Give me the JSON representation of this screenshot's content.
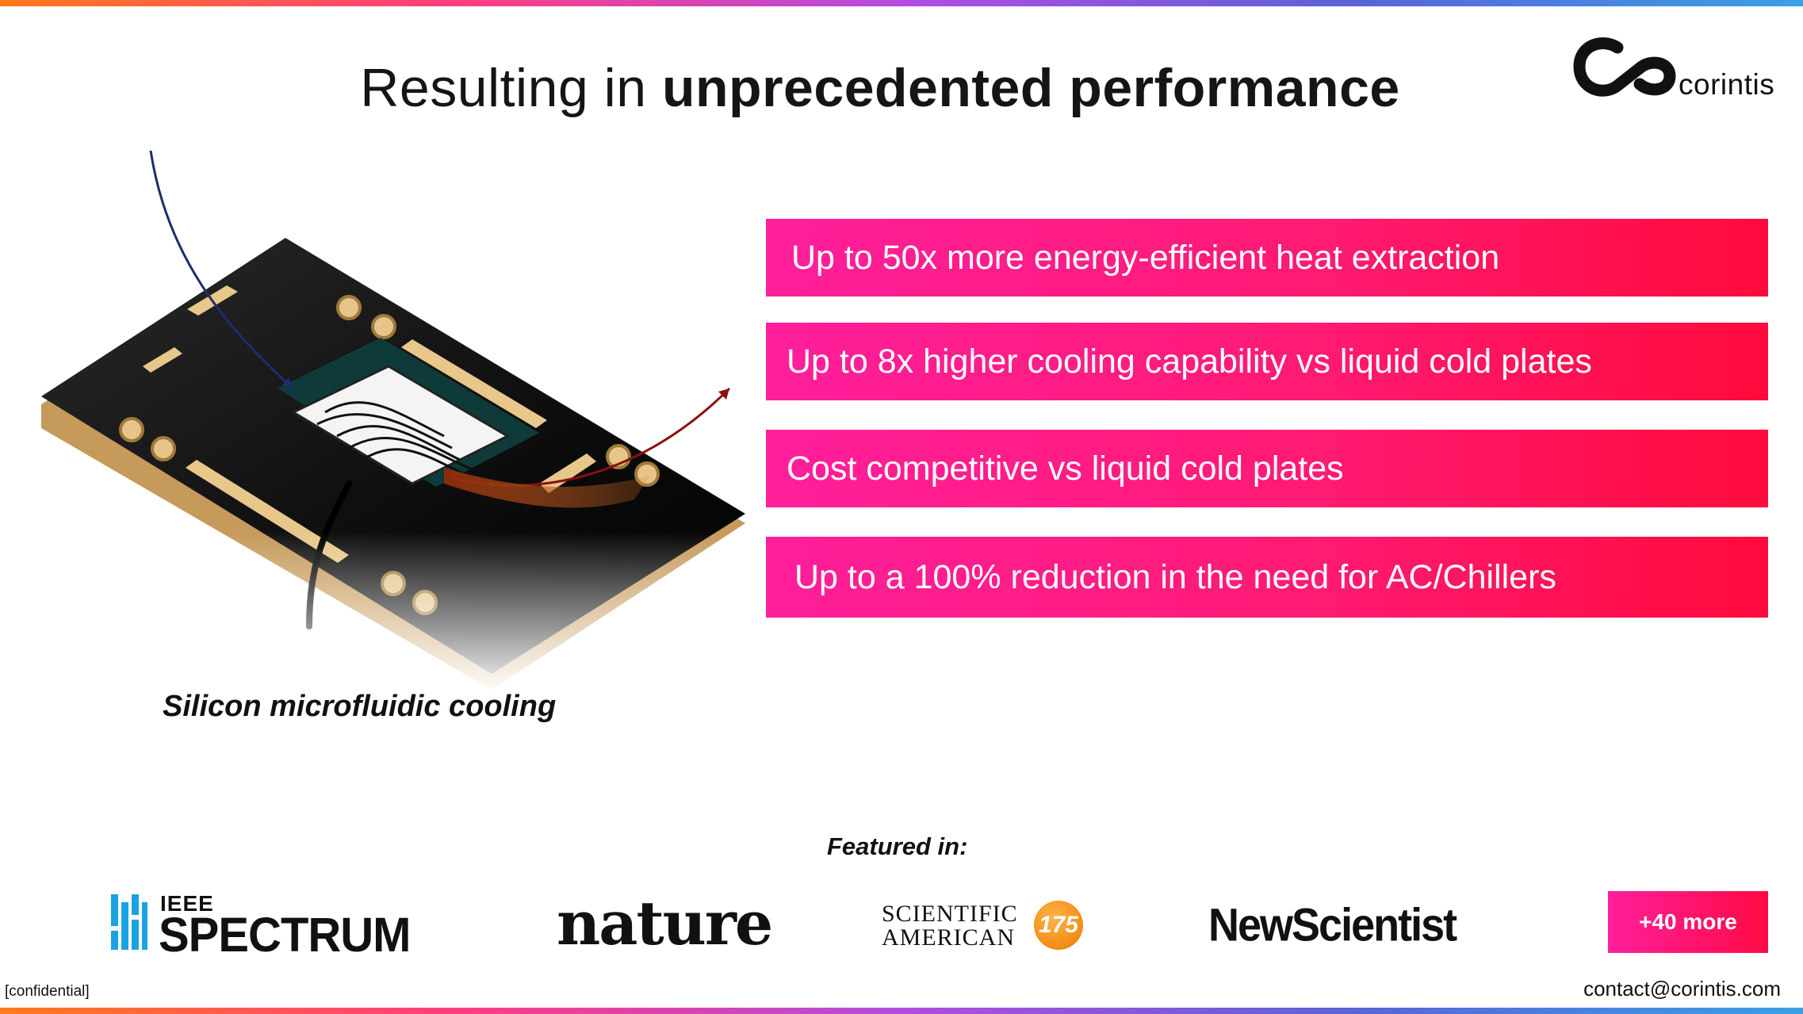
{
  "title": {
    "normal": "Resulting in ",
    "bold": "unprecedented performance"
  },
  "logo": {
    "wordmark": "corintis",
    "mark": "co-loop-logo"
  },
  "illustration": {
    "caption": "Silicon microfluidic cooling"
  },
  "benefits": [
    "Up to 50x more energy-efficient heat extraction",
    "Up to 8x higher cooling capability vs liquid cold plates",
    "Cost competitive vs liquid cold plates",
    "Up to a 100% reduction in the need for AC/Chillers"
  ],
  "featured": {
    "label": "Featured in:",
    "publications": {
      "ieee_top": "IEEE",
      "ieee_main": "SPECTRUM",
      "nature": "nature",
      "sciam_line1": "SCIENTIFIC",
      "sciam_line2": "AMERICAN",
      "sciam_badge": "175",
      "newscientist": "NewScientist"
    },
    "more_label": "+40 more"
  },
  "footer": {
    "confidential": "[confidential]",
    "contact": "contact@corintis.com"
  },
  "colors": {
    "accent_start": "#ff1f9c",
    "accent_end": "#ff0a3c",
    "text": "#111111"
  }
}
